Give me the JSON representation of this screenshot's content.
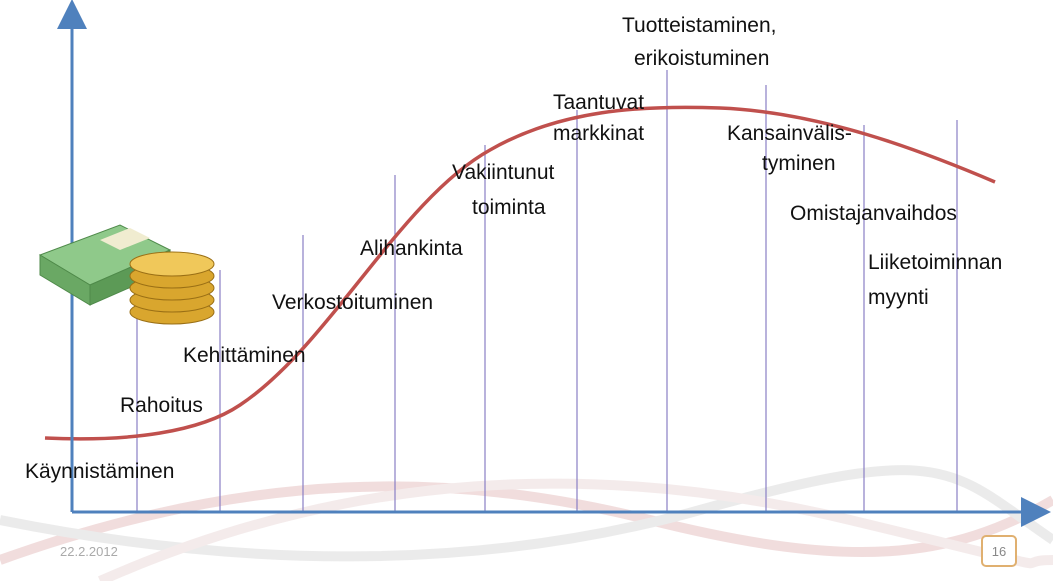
{
  "stages": [
    {
      "lines": [
        "Käynnistäminen"
      ]
    },
    {
      "lines": [
        "Rahoitus"
      ]
    },
    {
      "lines": [
        "Kehittäminen"
      ]
    },
    {
      "lines": [
        "Verkostoituminen"
      ]
    },
    {
      "lines": [
        "Alihankinta"
      ]
    },
    {
      "lines": [
        "Vakiintunut",
        "toiminta"
      ]
    },
    {
      "lines": [
        "Taantuvat",
        "markkinat"
      ]
    },
    {
      "lines": [
        "Tuotteistaminen,",
        "erikoistuminen"
      ]
    },
    {
      "lines": [
        "Kansainvälis-",
        "tyminen"
      ]
    },
    {
      "lines": [
        "Omistajanvaihdos"
      ]
    },
    {
      "lines": [
        "Liiketoiminnan",
        "myynti"
      ]
    }
  ],
  "footer": {
    "date": "22.2.2012",
    "page_number": "16"
  }
}
